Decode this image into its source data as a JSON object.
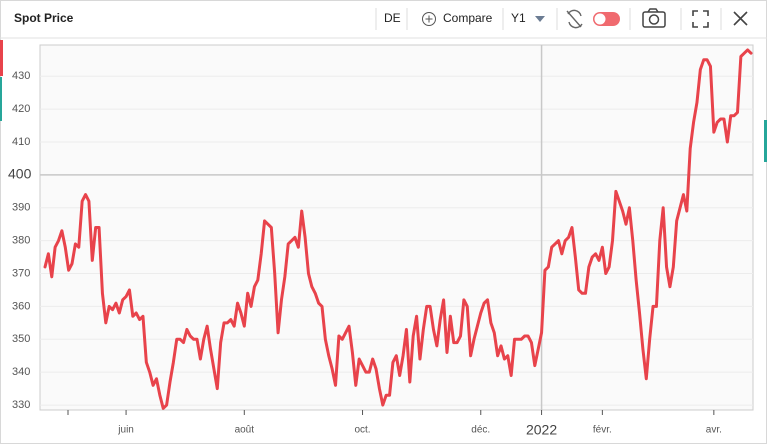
{
  "toolbar": {
    "title": "Spot Price",
    "region": "DE",
    "compare": "Compare",
    "axis": "Y1"
  },
  "chart_data": {
    "type": "line",
    "series": [
      {
        "name": "Spot Price",
        "color": "#e8434b",
        "values": [
          372,
          376,
          369,
          378,
          380,
          383,
          378,
          371,
          373,
          379,
          378,
          392,
          394,
          392,
          374,
          384,
          384,
          364,
          355,
          360,
          359,
          361,
          358,
          362,
          363,
          365,
          357,
          358,
          356,
          357,
          343,
          340,
          336,
          338,
          333,
          329,
          330,
          337,
          343,
          350,
          350,
          349,
          353,
          351,
          350,
          350,
          344,
          350,
          354,
          347,
          341,
          335,
          349,
          355,
          355,
          356,
          354,
          361,
          358,
          354,
          364,
          360,
          366,
          368,
          376,
          386,
          385,
          384,
          370,
          352,
          362,
          369,
          379,
          380,
          381,
          378,
          389,
          381,
          370,
          366,
          364,
          361,
          360,
          350,
          345,
          341,
          336,
          351,
          350,
          352,
          354,
          346,
          336,
          344,
          342,
          340,
          340,
          344,
          341,
          335,
          330,
          333,
          333,
          343,
          345,
          339,
          345,
          353,
          337,
          351,
          357,
          344,
          353,
          360,
          360,
          353,
          348,
          356,
          362,
          346,
          357,
          349,
          349,
          351,
          362,
          360,
          345,
          350,
          354,
          358,
          361,
          362,
          355,
          352,
          345,
          348,
          344,
          345,
          339,
          350,
          350,
          350,
          351,
          351,
          349,
          342,
          347,
          352,
          371,
          372,
          378,
          379,
          380,
          376,
          380,
          381,
          384,
          375,
          365,
          364,
          364,
          372,
          375,
          376,
          374,
          378,
          370,
          372,
          380,
          395,
          392,
          389,
          385,
          390,
          380,
          368,
          358,
          347,
          338,
          350,
          360,
          360,
          380,
          390,
          372,
          366,
          372,
          386,
          390,
          394,
          389,
          408,
          416,
          422,
          432,
          435,
          435,
          433,
          413,
          416,
          417,
          417,
          410,
          418,
          418,
          419,
          436,
          437,
          438,
          437
        ]
      }
    ],
    "xlim": [
      0,
      209
    ],
    "xticks": [
      {
        "value": 24,
        "label": "juin"
      },
      {
        "value": 59,
        "label": "août"
      },
      {
        "value": 94,
        "label": "oct."
      },
      {
        "value": 129,
        "label": "déc."
      },
      {
        "value": 147,
        "label": "2022"
      },
      {
        "value": 165,
        "label": "févr."
      },
      {
        "value": 198,
        "label": "avr."
      }
    ],
    "ylim": [
      328.5,
      439.5
    ],
    "yticks": [
      330,
      340,
      350,
      360,
      370,
      380,
      390,
      400,
      410,
      420,
      430
    ],
    "grid": true,
    "crosshair": {
      "x": 147,
      "y": 400
    }
  }
}
